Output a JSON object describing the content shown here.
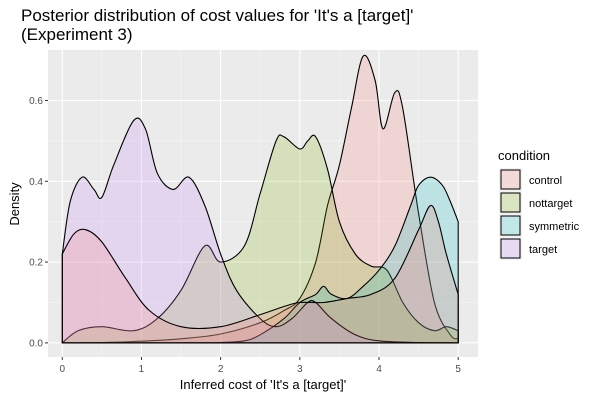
{
  "chart_data": {
    "type": "area",
    "title_line1": "Posterior distribution of cost values for 'It's a [target]'",
    "title_line2": "(Experiment 3)",
    "xlabel": "Inferred cost of 'It's a [target]'",
    "ylabel": "Density",
    "xlim": [
      -0.18,
      5.25
    ],
    "ylim": [
      -0.035,
      0.725
    ],
    "x_ticks": [
      0,
      1,
      2,
      3,
      4,
      5
    ],
    "x_tick_labels": [
      "0",
      "1",
      "2",
      "3",
      "4",
      "5"
    ],
    "y_ticks": [
      0.0,
      0.2,
      0.4,
      0.6
    ],
    "y_tick_labels": [
      "0.0",
      "0.2",
      "0.4",
      "0.6"
    ],
    "grid": true,
    "legend_title": "condition",
    "legend_position": "right",
    "series": [
      {
        "name": "control",
        "fill": "#F8766D",
        "points": [
          [
            0,
            0
          ],
          [
            0.5,
            0.001
          ],
          [
            1,
            0.004
          ],
          [
            1.5,
            0.01
          ],
          [
            2,
            0.022
          ],
          [
            2.5,
            0.05
          ],
          [
            2.8,
            0.08
          ],
          [
            3.0,
            0.11
          ],
          [
            3.2,
            0.2
          ],
          [
            3.35,
            0.34
          ],
          [
            3.5,
            0.44
          ],
          [
            3.65,
            0.58
          ],
          [
            3.8,
            0.71
          ],
          [
            3.95,
            0.65
          ],
          [
            4.05,
            0.53
          ],
          [
            4.2,
            0.62
          ],
          [
            4.3,
            0.58
          ],
          [
            4.5,
            0.32
          ],
          [
            4.7,
            0.1
          ],
          [
            4.9,
            0.02
          ],
          [
            5.0,
            0.01
          ]
        ]
      },
      {
        "name": "nottarget",
        "fill": "#7CAE00",
        "points": [
          [
            0,
            0
          ],
          [
            0.2,
            0.03
          ],
          [
            0.5,
            0.04
          ],
          [
            0.9,
            0.03
          ],
          [
            1.2,
            0.06
          ],
          [
            1.5,
            0.13
          ],
          [
            1.8,
            0.24
          ],
          [
            2.0,
            0.2
          ],
          [
            2.3,
            0.24
          ],
          [
            2.5,
            0.37
          ],
          [
            2.7,
            0.5
          ],
          [
            2.8,
            0.51
          ],
          [
            3.0,
            0.48
          ],
          [
            3.1,
            0.5
          ],
          [
            3.2,
            0.51
          ],
          [
            3.35,
            0.43
          ],
          [
            3.5,
            0.3
          ],
          [
            3.7,
            0.22
          ],
          [
            3.9,
            0.19
          ],
          [
            4.1,
            0.18
          ],
          [
            4.3,
            0.1
          ],
          [
            4.5,
            0.05
          ],
          [
            4.7,
            0.03
          ],
          [
            4.85,
            0.04
          ],
          [
            5.0,
            0.03
          ]
        ]
      },
      {
        "name": "symmetric",
        "fill": "#00BFC4",
        "points": [
          [
            0,
            0
          ],
          [
            0.5,
            0
          ],
          [
            1,
            0
          ],
          [
            1.5,
            0
          ],
          [
            2.0,
            0.001
          ],
          [
            2.3,
            0.005
          ],
          [
            2.5,
            0.02
          ],
          [
            2.8,
            0.06
          ],
          [
            3.0,
            0.1
          ],
          [
            3.2,
            0.12
          ],
          [
            3.3,
            0.14
          ],
          [
            3.4,
            0.12
          ],
          [
            3.6,
            0.11
          ],
          [
            3.8,
            0.14
          ],
          [
            4.0,
            0.18
          ],
          [
            4.2,
            0.24
          ],
          [
            4.4,
            0.34
          ],
          [
            4.5,
            0.39
          ],
          [
            4.65,
            0.41
          ],
          [
            4.8,
            0.39
          ],
          [
            4.9,
            0.35
          ],
          [
            5.0,
            0.3
          ]
        ]
      },
      {
        "name": "target",
        "fill": "#C77CFF",
        "points": [
          [
            0,
            0.22
          ],
          [
            0.1,
            0.35
          ],
          [
            0.25,
            0.41
          ],
          [
            0.4,
            0.38
          ],
          [
            0.5,
            0.36
          ],
          [
            0.65,
            0.44
          ],
          [
            0.9,
            0.55
          ],
          [
            1.05,
            0.53
          ],
          [
            1.2,
            0.42
          ],
          [
            1.4,
            0.38
          ],
          [
            1.6,
            0.41
          ],
          [
            1.8,
            0.34
          ],
          [
            2.0,
            0.22
          ],
          [
            2.2,
            0.13
          ],
          [
            2.5,
            0.06
          ],
          [
            2.7,
            0.04
          ],
          [
            2.9,
            0.06
          ],
          [
            3.1,
            0.1
          ],
          [
            3.2,
            0.1
          ],
          [
            3.4,
            0.06
          ],
          [
            3.7,
            0.02
          ],
          [
            4.0,
            0.005
          ],
          [
            4.5,
            0.001
          ],
          [
            5.0,
            0
          ]
        ]
      },
      {
        "name": "control",
        "role": "secondary-mode",
        "fill": "#F8766D",
        "points": [
          [
            0,
            0.22
          ],
          [
            0.15,
            0.27
          ],
          [
            0.3,
            0.28
          ],
          [
            0.5,
            0.25
          ],
          [
            0.8,
            0.16
          ],
          [
            1.1,
            0.08
          ],
          [
            1.5,
            0.04
          ],
          [
            2.0,
            0.04
          ],
          [
            2.5,
            0.07
          ],
          [
            2.8,
            0.09
          ],
          [
            3.0,
            0.1
          ],
          [
            3.3,
            0.1
          ],
          [
            3.6,
            0.11
          ],
          [
            3.9,
            0.12
          ],
          [
            4.2,
            0.16
          ],
          [
            4.5,
            0.28
          ],
          [
            4.65,
            0.34
          ],
          [
            4.75,
            0.3
          ],
          [
            4.85,
            0.22
          ],
          [
            5.0,
            0.12
          ]
        ]
      }
    ]
  }
}
